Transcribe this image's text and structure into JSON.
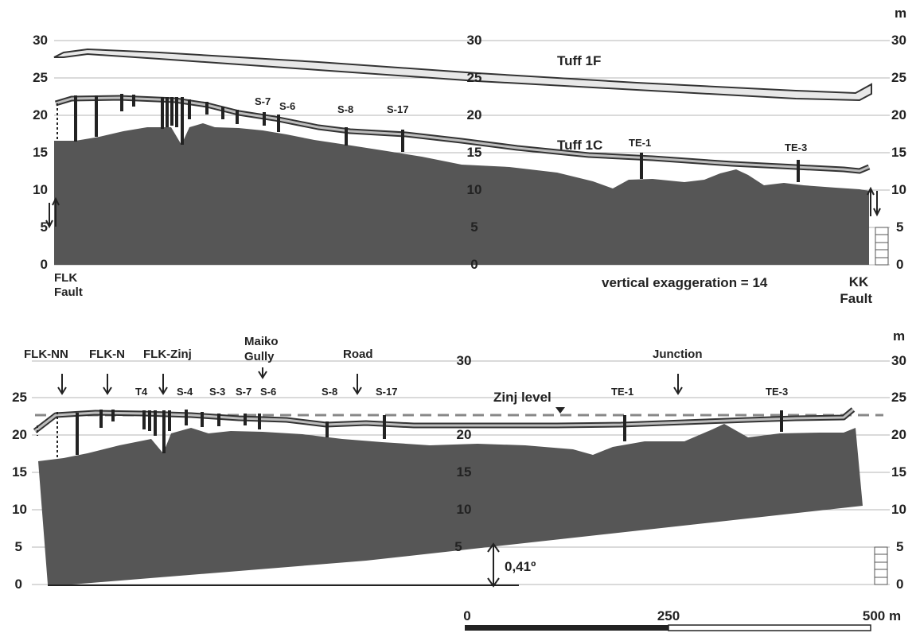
{
  "top_panel": {
    "unit": "m",
    "ticks": [
      "0",
      "5",
      "10",
      "15",
      "20",
      "25",
      "30"
    ],
    "tuff_1f": "Tuff 1F",
    "tuff_1c": "Tuff 1C",
    "trench_labels": [
      "S-7",
      "S-6",
      "S-8",
      "S-17",
      "TE-1",
      "TE-3"
    ],
    "left_fault": [
      "FLK",
      "Fault"
    ],
    "right_fault": [
      "KK",
      "Fault"
    ],
    "exaggeration": "vertical exaggeration = 14"
  },
  "bottom_panel": {
    "unit": "m",
    "ticks": [
      "0",
      "5",
      "10",
      "15",
      "20",
      "25",
      "30"
    ],
    "locality_labels": [
      "FLK-NN",
      "FLK-N",
      "FLK-Zinj",
      "Maiko",
      "Gully",
      "Road",
      "Junction"
    ],
    "trench_labels": [
      "T4",
      "S-4",
      "S-3",
      "S-7",
      "S-6",
      "S-8",
      "S-17",
      "TE-1",
      "TE-3"
    ],
    "zinj_level": "Zinj level",
    "angle": "0,41º"
  },
  "scale_bar": {
    "labels": [
      "0",
      "250",
      "500 m"
    ]
  }
}
